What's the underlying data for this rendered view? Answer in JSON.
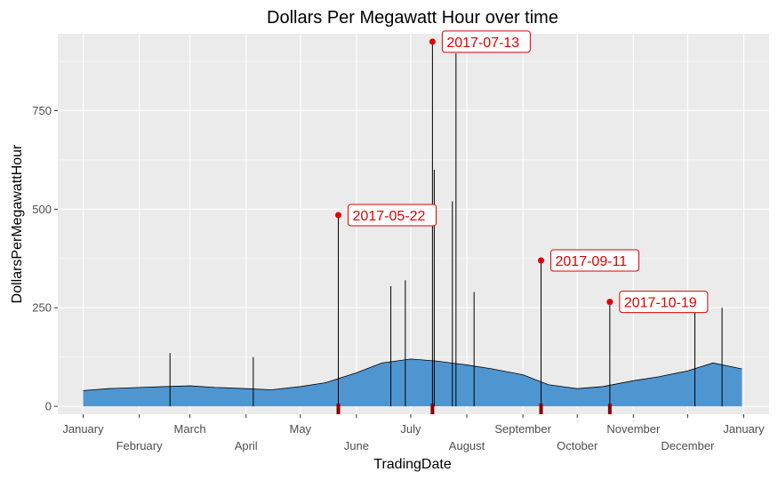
{
  "chart_data": {
    "type": "line",
    "title": "Dollars Per Megawatt Hour over time",
    "xlabel": "TradingDate",
    "ylabel": "DollarsPerMegawattHour",
    "xlim": [
      "2016-12-18",
      "2018-01-15"
    ],
    "ylim": [
      -20,
      945
    ],
    "grid": true,
    "y_ticks": [
      0,
      250,
      500,
      750
    ],
    "x_ticks_upper": [
      {
        "label": "January",
        "date": "2017-01-01"
      },
      {
        "label": "March",
        "date": "2017-03-01"
      },
      {
        "label": "May",
        "date": "2017-05-01"
      },
      {
        "label": "July",
        "date": "2017-07-01"
      },
      {
        "label": "September",
        "date": "2017-09-01"
      },
      {
        "label": "November",
        "date": "2017-11-01"
      },
      {
        "label": "January",
        "date": "2018-01-01"
      }
    ],
    "x_ticks_lower": [
      {
        "label": "February",
        "date": "2017-02-01"
      },
      {
        "label": "April",
        "date": "2017-04-01"
      },
      {
        "label": "June",
        "date": "2017-06-01"
      },
      {
        "label": "August",
        "date": "2017-08-01"
      },
      {
        "label": "October",
        "date": "2017-10-01"
      },
      {
        "label": "December",
        "date": "2017-12-01"
      }
    ],
    "series": [
      {
        "fill_color": "#4f96d1",
        "line_color": "#000000",
        "x": [
          "2017-01-01",
          "2017-01-15",
          "2017-02-01",
          "2017-02-15",
          "2017-03-01",
          "2017-03-15",
          "2017-04-01",
          "2017-04-15",
          "2017-05-01",
          "2017-05-15",
          "2017-06-01",
          "2017-06-15",
          "2017-07-01",
          "2017-07-15",
          "2017-08-01",
          "2017-08-15",
          "2017-09-01",
          "2017-09-15",
          "2017-10-01",
          "2017-10-15",
          "2017-11-01",
          "2017-11-15",
          "2017-12-01",
          "2017-12-15",
          "2017-12-31"
        ],
        "y": [
          40,
          45,
          48,
          50,
          52,
          48,
          45,
          42,
          50,
          60,
          85,
          110,
          120,
          115,
          105,
          95,
          80,
          55,
          45,
          50,
          65,
          75,
          90,
          110,
          95
        ]
      }
    ],
    "spikes": [
      {
        "date": "2017-02-18",
        "value": 135
      },
      {
        "date": "2017-04-05",
        "value": 125
      },
      {
        "date": "2017-05-22",
        "value": 485
      },
      {
        "date": "2017-06-20",
        "value": 305
      },
      {
        "date": "2017-06-28",
        "value": 320
      },
      {
        "date": "2017-07-13",
        "value": 925
      },
      {
        "date": "2017-07-14",
        "value": 600
      },
      {
        "date": "2017-07-26",
        "value": 895
      },
      {
        "date": "2017-07-24",
        "value": 520
      },
      {
        "date": "2017-08-05",
        "value": 290
      },
      {
        "date": "2017-09-11",
        "value": 370
      },
      {
        "date": "2017-10-19",
        "value": 265
      },
      {
        "date": "2017-12-05",
        "value": 250
      },
      {
        "date": "2017-12-20",
        "value": 250
      }
    ],
    "annotations": [
      {
        "label": "2017-05-22",
        "date": "2017-05-22",
        "value": 485
      },
      {
        "label": "2017-07-13",
        "date": "2017-07-13",
        "value": 925
      },
      {
        "label": "2017-09-11",
        "date": "2017-09-11",
        "value": 370
      },
      {
        "label": "2017-10-19",
        "date": "2017-10-19",
        "value": 265
      }
    ],
    "rug_dates": [
      "2017-05-22",
      "2017-07-13",
      "2017-09-11",
      "2017-10-19"
    ],
    "colors": {
      "panel": "#ebebeb",
      "grid": "#ffffff",
      "highlight": "#e00000",
      "rug": "#8b0000"
    }
  }
}
